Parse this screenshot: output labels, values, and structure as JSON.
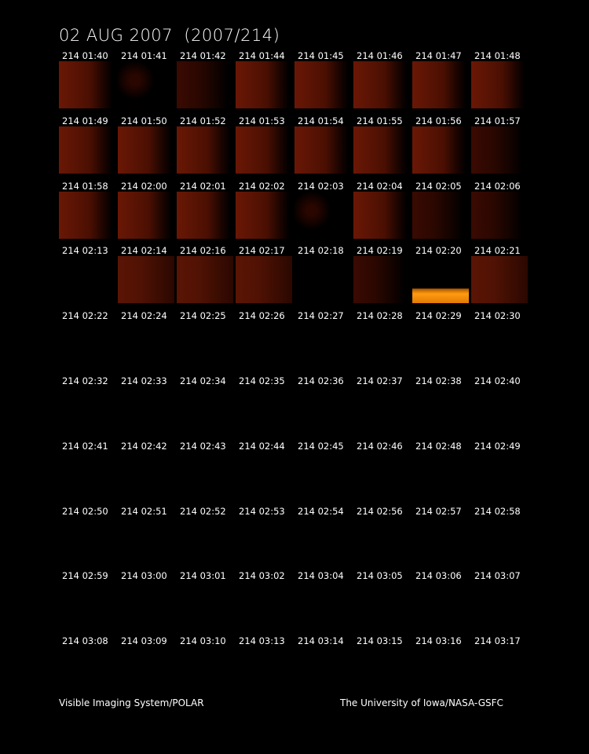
{
  "title": "02 AUG 2007  (2007/214)",
  "frames": [
    "214 01:40",
    "214 01:41",
    "214 01:42",
    "214 01:44",
    "214 01:45",
    "214 01:46",
    "214 01:47",
    "214 01:48",
    "214 01:49",
    "214 01:50",
    "214 01:52",
    "214 01:53",
    "214 01:54",
    "214 01:55",
    "214 01:56",
    "214 01:57",
    "214 01:58",
    "214 02:00",
    "214 02:01",
    "214 02:02",
    "214 02:03",
    "214 02:04",
    "214 02:05",
    "214 02:06",
    "214 02:13",
    "214 02:14",
    "214 02:16",
    "214 02:17",
    "214 02:18",
    "214 02:19",
    "214 02:20",
    "214 02:21",
    "214 02:22",
    "214 02:24",
    "214 02:25",
    "214 02:26",
    "214 02:27",
    "214 02:28",
    "214 02:29",
    "214 02:30",
    "214 02:32",
    "214 02:33",
    "214 02:34",
    "214 02:35",
    "214 02:36",
    "214 02:37",
    "214 02:38",
    "214 02:40",
    "214 02:41",
    "214 02:42",
    "214 02:43",
    "214 02:44",
    "214 02:45",
    "214 02:46",
    "214 02:48",
    "214 02:49",
    "214 02:50",
    "214 02:51",
    "214 02:52",
    "214 02:53",
    "214 02:54",
    "214 02:56",
    "214 02:57",
    "214 02:58",
    "214 02:59",
    "214 03:00",
    "214 03:01",
    "214 03:02",
    "214 03:04",
    "214 03:05",
    "214 03:06",
    "214 03:07",
    "214 03:08",
    "214 03:09",
    "214 03:10",
    "214 03:13",
    "214 03:14",
    "214 03:15",
    "214 03:16",
    "214 03:17"
  ],
  "footer": {
    "left": "Visible Imaging System/POLAR",
    "right": "The University of Iowa/NASA-GSFC"
  },
  "colors": {
    "background": "#000000",
    "tile_red": "#5c1404",
    "tile_bright": "#ff9a10"
  }
}
